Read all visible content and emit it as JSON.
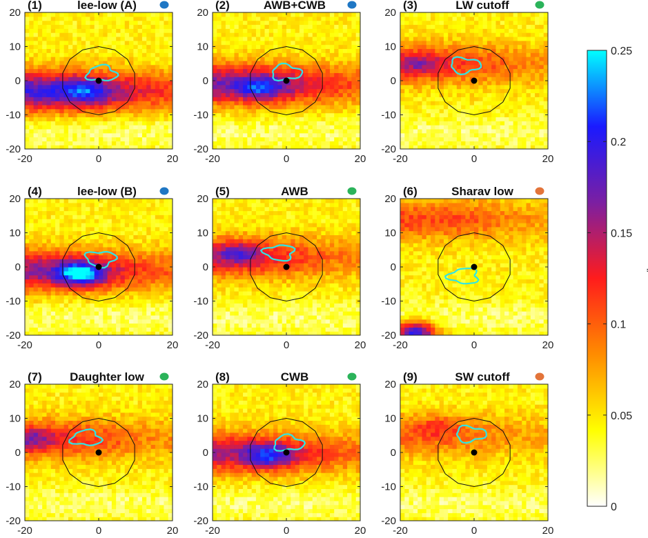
{
  "chart_data": [
    {
      "type": "heatmap",
      "panel": "(1)",
      "title": "lee-low (A)",
      "dot_color": "#1f77c4",
      "xlim": [
        -20,
        20
      ],
      "ylim": [
        -20,
        20
      ],
      "xticks": [
        -20,
        0,
        20
      ],
      "yticks": [
        -20,
        -10,
        0,
        10,
        20
      ],
      "high_band": {
        "y": -3,
        "peak": 0.19
      },
      "max_region": {
        "x": -4,
        "y": -3,
        "value": 0.2
      },
      "center": [
        0,
        0
      ],
      "circle_radius": 10,
      "contour": "cyan",
      "contour_level": 0.25
    },
    {
      "type": "heatmap",
      "panel": "(2)",
      "title": "AWB+CWB",
      "dot_color": "#1f77c4",
      "xlim": [
        -20,
        20
      ],
      "ylim": [
        -20,
        20
      ],
      "xticks": [
        -20,
        0,
        20
      ],
      "yticks": [
        -20,
        -10,
        0,
        10,
        20
      ],
      "high_band": {
        "y": -1,
        "peak": 0.17
      },
      "max_region": {
        "x": -7,
        "y": -2,
        "value": 0.2
      },
      "center": [
        0,
        0
      ],
      "circle_radius": 10,
      "contour": "cyan",
      "contour_level": 0.25
    },
    {
      "type": "heatmap",
      "panel": "(3)",
      "title": "LW cutoff",
      "dot_color": "#2bb35a",
      "xlim": [
        -20,
        20
      ],
      "ylim": [
        -20,
        20
      ],
      "xticks": [
        -20,
        0,
        20
      ],
      "yticks": [
        -20,
        -10,
        0,
        10,
        20
      ],
      "high_band": {
        "y": 5,
        "peak": 0.12
      },
      "max_region": {
        "x": -15,
        "y": 5,
        "value": 0.14
      },
      "center": [
        0,
        0
      ],
      "circle_radius": 10,
      "contour": "cyan",
      "contour_level": 0.25
    },
    {
      "type": "heatmap",
      "panel": "(4)",
      "title": "lee-low (B)",
      "dot_color": "#1f77c4",
      "xlim": [
        -20,
        20
      ],
      "ylim": [
        -20,
        20
      ],
      "xticks": [
        -20,
        0,
        20
      ],
      "yticks": [
        -20,
        -10,
        0,
        10,
        20
      ],
      "high_band": {
        "y": -1,
        "peak": 0.16
      },
      "max_region": {
        "x": -5,
        "y": -2,
        "value": 0.25
      },
      "center": [
        0,
        0
      ],
      "circle_radius": 10,
      "contour": "cyan",
      "contour_level": 0.25
    },
    {
      "type": "heatmap",
      "panel": "(5)",
      "title": "AWB",
      "dot_color": "#2bb35a",
      "xlim": [
        -20,
        20
      ],
      "ylim": [
        -20,
        20
      ],
      "xticks": [
        -20,
        0,
        20
      ],
      "yticks": [
        -20,
        -10,
        0,
        10,
        20
      ],
      "high_band": {
        "y": 3,
        "peak": 0.13
      },
      "max_region": {
        "x": -13,
        "y": 4,
        "value": 0.17
      },
      "center": [
        0,
        0
      ],
      "circle_radius": 10,
      "contour": "cyan",
      "contour_level": 0.25
    },
    {
      "type": "heatmap",
      "panel": "(6)",
      "title": "Sharav low",
      "dot_color": "#e3743a",
      "xlim": [
        -20,
        20
      ],
      "ylim": [
        -20,
        20
      ],
      "xticks": [
        -20,
        0,
        20
      ],
      "yticks": [
        -20,
        -10,
        0,
        10,
        20
      ],
      "high_band": {
        "y": 14,
        "peak": 0.11
      },
      "max_region": {
        "x": -16,
        "y": -19,
        "value": 0.25
      },
      "center": [
        0,
        0
      ],
      "circle_radius": 10,
      "contour": "cyan",
      "contour_level": 0.25
    },
    {
      "type": "heatmap",
      "panel": "(7)",
      "title": "Daughter low",
      "dot_color": "#2bb35a",
      "xlim": [
        -20,
        20
      ],
      "ylim": [
        -20,
        20
      ],
      "xticks": [
        -20,
        0,
        20
      ],
      "yticks": [
        -20,
        -10,
        0,
        10,
        20
      ],
      "high_band": {
        "y": 4,
        "peak": 0.12
      },
      "max_region": {
        "x": -18,
        "y": 4,
        "value": 0.15
      },
      "center": [
        0,
        0
      ],
      "circle_radius": 10,
      "contour": "cyan",
      "contour_level": 0.25
    },
    {
      "type": "heatmap",
      "panel": "(8)",
      "title": "CWB",
      "dot_color": "#2bb35a",
      "xlim": [
        -20,
        20
      ],
      "ylim": [
        -20,
        20
      ],
      "xticks": [
        -20,
        0,
        20
      ],
      "yticks": [
        -20,
        -10,
        0,
        10,
        20
      ],
      "high_band": {
        "y": 0,
        "peak": 0.15
      },
      "max_region": {
        "x": -5,
        "y": -1,
        "value": 0.2
      },
      "center": [
        0,
        0
      ],
      "circle_radius": 10,
      "contour": "cyan",
      "contour_level": 0.25
    },
    {
      "type": "heatmap",
      "panel": "(9)",
      "title": "SW cutoff",
      "dot_color": "#e3743a",
      "xlim": [
        -20,
        20
      ],
      "ylim": [
        -20,
        20
      ],
      "xticks": [
        -20,
        0,
        20
      ],
      "yticks": [
        -20,
        -10,
        0,
        10,
        20
      ],
      "high_band": {
        "y": 5,
        "peak": 0.1
      },
      "max_region": {
        "x": -10,
        "y": 8,
        "value": 0.11
      },
      "center": [
        0,
        0
      ],
      "circle_radius": 10,
      "contour": "cyan",
      "contour_level": 0.25
    }
  ],
  "colorbar": {
    "label": "mm/h",
    "ticks": [
      0,
      0.05,
      0.1,
      0.15,
      0.2,
      0.25
    ],
    "tick_labels": [
      "0",
      "0.05",
      "0.1",
      "0.15",
      "0.2",
      "0.25"
    ],
    "range": [
      0,
      0.25
    ],
    "colors": [
      "#ffffff",
      "#ffff00",
      "#ff8c00",
      "#ff1c1c",
      "#7b1fa2",
      "#1a1aff",
      "#00ffff"
    ]
  }
}
